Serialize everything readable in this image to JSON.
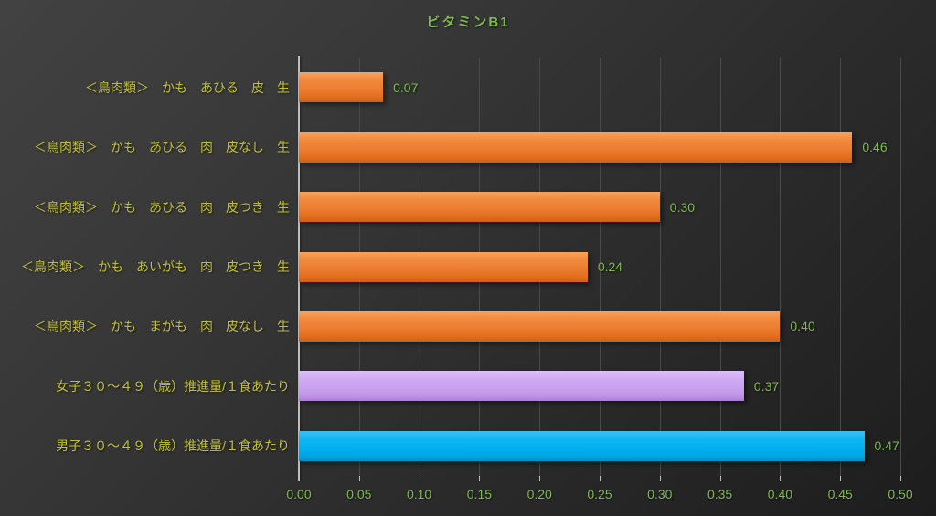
{
  "chart_data": {
    "type": "bar",
    "orientation": "horizontal",
    "title": "ビタミンB1",
    "categories": [
      "＜鳥肉類＞　かも　あひる　皮　生",
      "＜鳥肉類＞　かも　あひる　肉　皮なし　生",
      "＜鳥肉類＞　かも　あひる　肉　皮つき　生",
      "＜鳥肉類＞　かも　あいがも　肉　皮つき　生",
      "＜鳥肉類＞　かも　まがも　肉　皮なし　生",
      "女子３０～４９（歳）推進量/１食あたり",
      "男子３０～４９（歳）推進量/１食あたり"
    ],
    "values": [
      0.07,
      0.46,
      0.3,
      0.24,
      0.4,
      0.37,
      0.47
    ],
    "value_labels": [
      "0.07",
      "0.46",
      "0.30",
      "0.24",
      "0.40",
      "0.37",
      "0.47"
    ],
    "bar_colors": [
      "orange",
      "orange",
      "orange",
      "orange",
      "orange",
      "purple",
      "blue"
    ],
    "x_ticks": [
      "0.00",
      "0.05",
      "0.10",
      "0.15",
      "0.20",
      "0.25",
      "0.30",
      "0.35",
      "0.40",
      "0.45",
      "0.50"
    ],
    "xlim": [
      0,
      0.5
    ],
    "grid": true,
    "legend": false
  },
  "colors": {
    "title_green": "#7eba4e",
    "value_label_green": "#7eba4e",
    "category_label_yellow": "#c2c136",
    "orange_bar": "#ed7d31",
    "purple_bar": "#c9a0ee",
    "blue_bar": "#00b0f0",
    "background_dark": "#2c2c2c",
    "gridline_gray": "#4a4a4a",
    "axis_line_gray": "#bfbfbf"
  }
}
